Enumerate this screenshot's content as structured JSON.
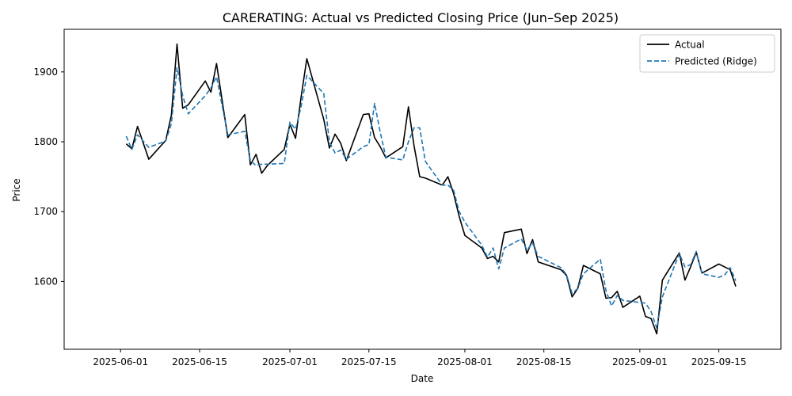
{
  "chart_data": {
    "type": "line",
    "title": "CARERATING: Actual vs Predicted Closing Price (Jun–Sep 2025)",
    "xlabel": "Date",
    "ylabel": "Price",
    "xlim": [
      "2025-05-22",
      "2025-09-26"
    ],
    "ylim": [
      1503,
      1961
    ],
    "x_ticks": [
      "2025-06-01",
      "2025-06-15",
      "2025-07-01",
      "2025-07-15",
      "2025-08-01",
      "2025-08-15",
      "2025-09-01",
      "2025-09-15"
    ],
    "y_ticks": [
      1600,
      1700,
      1800,
      1900
    ],
    "grid": false,
    "legend": {
      "position": "top-right",
      "entries": [
        "Actual",
        "Predicted (Ridge)"
      ]
    },
    "x": [
      "2025-06-02",
      "2025-06-03",
      "2025-06-04",
      "2025-06-06",
      "2025-06-09",
      "2025-06-10",
      "2025-06-11",
      "2025-06-12",
      "2025-06-13",
      "2025-06-16",
      "2025-06-17",
      "2025-06-18",
      "2025-06-20",
      "2025-06-23",
      "2025-06-24",
      "2025-06-25",
      "2025-06-26",
      "2025-06-27",
      "2025-06-30",
      "2025-07-01",
      "2025-07-02",
      "2025-07-03",
      "2025-07-04",
      "2025-07-07",
      "2025-07-08",
      "2025-07-09",
      "2025-07-10",
      "2025-07-11",
      "2025-07-14",
      "2025-07-15",
      "2025-07-16",
      "2025-07-17",
      "2025-07-18",
      "2025-07-21",
      "2025-07-22",
      "2025-07-23",
      "2025-07-24",
      "2025-07-25",
      "2025-07-28",
      "2025-07-29",
      "2025-07-30",
      "2025-07-31",
      "2025-08-01",
      "2025-08-04",
      "2025-08-05",
      "2025-08-06",
      "2025-08-07",
      "2025-08-08",
      "2025-08-11",
      "2025-08-12",
      "2025-08-13",
      "2025-08-14",
      "2025-08-18",
      "2025-08-19",
      "2025-08-20",
      "2025-08-21",
      "2025-08-22",
      "2025-08-25",
      "2025-08-26",
      "2025-08-27",
      "2025-08-28",
      "2025-08-29",
      "2025-09-01",
      "2025-09-02",
      "2025-09-03",
      "2025-09-04",
      "2025-09-05",
      "2025-09-08",
      "2025-09-09",
      "2025-09-10",
      "2025-09-11",
      "2025-09-12",
      "2025-09-15",
      "2025-09-16",
      "2025-09-17",
      "2025-09-18"
    ],
    "series": [
      {
        "name": "Actual",
        "color": "#000000",
        "style": "solid",
        "values": [
          1797,
          1790,
          1822,
          1775,
          1802,
          1838,
          1940,
          1848,
          1853,
          1887,
          1871,
          1912,
          1806,
          1839,
          1767,
          1782,
          1755,
          1766,
          1789,
          1825,
          1805,
          1865,
          1919,
          1832,
          1791,
          1811,
          1798,
          1773,
          1839,
          1840,
          1806,
          1793,
          1777,
          1793,
          1850,
          1794,
          1750,
          1748,
          1738,
          1750,
          1726,
          1693,
          1666,
          1648,
          1633,
          1636,
          1628,
          1670,
          1675,
          1640,
          1660,
          1628,
          1617,
          1609,
          1578,
          1590,
          1623,
          1611,
          1576,
          1577,
          1586,
          1563,
          1579,
          1550,
          1547,
          1525,
          1602,
          1641,
          1602,
          1621,
          1642,
          1612,
          1625,
          1621,
          1617,
          1593
        ],
        "markers": [
          "2025-06-02",
          "2025-06-04",
          "2025-06-06",
          "2025-06-09",
          "2025-06-11",
          "2025-06-16",
          "2025-06-18",
          "2025-06-23",
          "2025-06-25",
          "2025-06-27",
          "2025-07-01",
          "2025-07-03",
          "2025-07-07",
          "2025-07-09",
          "2025-07-11",
          "2025-07-15",
          "2025-07-17",
          "2025-07-21",
          "2025-07-23",
          "2025-07-25",
          "2025-07-29",
          "2025-07-31",
          "2025-08-04",
          "2025-08-06",
          "2025-08-08",
          "2025-08-12",
          "2025-08-14",
          "2025-08-19",
          "2025-08-21",
          "2025-08-25",
          "2025-08-27",
          "2025-08-29",
          "2025-09-02",
          "2025-09-04",
          "2025-09-08",
          "2025-09-10",
          "2025-09-12",
          "2025-09-16",
          "2025-09-18"
        ]
      },
      {
        "name": "Predicted (Ridge)",
        "color": "#1f77b4",
        "style": "dashed",
        "values": [
          1808,
          1789,
          1810,
          1792,
          1801,
          1826,
          1906,
          1866,
          1840,
          1866,
          1877,
          1893,
          1810,
          1815,
          1773,
          1766,
          1768,
          1768,
          1769,
          1828,
          1818,
          1851,
          1895,
          1869,
          1800,
          1784,
          1788,
          1775,
          1793,
          1796,
          1855,
          1814,
          1778,
          1774,
          1800,
          1820,
          1820,
          1772,
          1738,
          1738,
          1731,
          1700,
          1685,
          1652,
          1635,
          1648,
          1618,
          1648,
          1661,
          1645,
          1655,
          1636,
          1620,
          1610,
          1583,
          1590,
          1611,
          1632,
          1587,
          1565,
          1580,
          1573,
          1570,
          1569,
          1557,
          1533,
          1578,
          1640,
          1621,
          1624,
          1643,
          1611,
          1606,
          1609,
          1620,
          1601
        ]
      }
    ]
  }
}
